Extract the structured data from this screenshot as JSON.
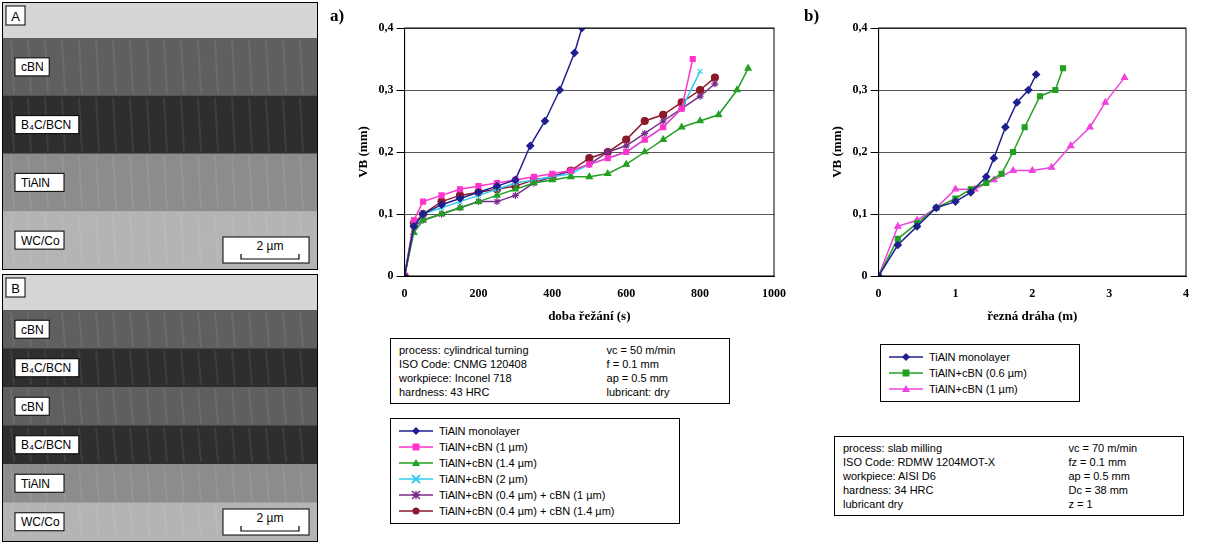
{
  "micrographs": [
    {
      "label": "A",
      "scale_bar": "2 µm",
      "layers": [
        {
          "name": "cBN",
          "color": "#5f5f5f"
        },
        {
          "name": "B₄C/BCN",
          "color": "#2e2e2e"
        },
        {
          "name": "TiAlN",
          "color": "#8c8c8c"
        },
        {
          "name": "WC/Co",
          "color": "#b4b4b4"
        }
      ]
    },
    {
      "label": "B",
      "scale_bar": "2 µm",
      "layers": [
        {
          "name": "cBN",
          "color": "#5f5f5f"
        },
        {
          "name": "B₄C/BCN",
          "color": "#2e2e2e"
        },
        {
          "name": "cBN",
          "color": "#5f5f5f"
        },
        {
          "name": "B₄C/BCN",
          "color": "#2e2e2e"
        },
        {
          "name": "TiAlN",
          "color": "#8c8c8c"
        },
        {
          "name": "WC/Co",
          "color": "#b4b4b4"
        }
      ]
    }
  ],
  "chart_data": [
    {
      "type": "line",
      "panel": "a)",
      "x_label": "doba řežání (s)",
      "y_label": "VB (mm)",
      "xlim": [
        0,
        1000
      ],
      "xticks": [
        0,
        200,
        400,
        600,
        800,
        1000
      ],
      "ylim": [
        0,
        0.4
      ],
      "yticks": [
        0,
        {
          "value": 0.1,
          "label": "0,1"
        },
        {
          "value": 0.2,
          "label": "0,2"
        },
        {
          "value": 0.3,
          "label": "0,3"
        },
        {
          "value": 0.4,
          "label": "0,4"
        }
      ],
      "grid": "y",
      "legend": "bottom",
      "info": [
        [
          "process: cylindrical turning",
          "vc = 50 m/min"
        ],
        [
          "ISO Code: CNMG 120408",
          "f = 0.1 mm"
        ],
        [
          "workpiece:   Inconel 718",
          "ap = 0.5 mm"
        ],
        [
          "hardness: 43 HRC",
          "lubricant: dry"
        ]
      ],
      "series": [
        {
          "name": "TiAlN monolayer",
          "color": "#1f1f8f",
          "marker": "diamond",
          "x": [
            0,
            25,
            50,
            100,
            150,
            200,
            250,
            300,
            340,
            380,
            420,
            460,
            480
          ],
          "values": [
            0,
            0.08,
            0.1,
            0.115,
            0.125,
            0.135,
            0.145,
            0.155,
            0.21,
            0.25,
            0.3,
            0.36,
            0.4
          ]
        },
        {
          "name": "TiAlN+cBN (1 µm)",
          "color": "#ff33cc",
          "marker": "square",
          "x": [
            0,
            25,
            50,
            100,
            150,
            200,
            250,
            300,
            350,
            400,
            450,
            500,
            550,
            600,
            650,
            700,
            750,
            780
          ],
          "values": [
            0,
            0.09,
            0.12,
            0.13,
            0.14,
            0.145,
            0.15,
            0.155,
            0.16,
            0.165,
            0.17,
            0.18,
            0.19,
            0.2,
            0.22,
            0.24,
            0.27,
            0.35
          ]
        },
        {
          "name": "TiAlN+cBN (1.4 µm)",
          "color": "#22a022",
          "marker": "triangle",
          "x": [
            0,
            25,
            50,
            100,
            150,
            200,
            250,
            300,
            350,
            400,
            450,
            500,
            550,
            600,
            650,
            700,
            750,
            800,
            850,
            900,
            930
          ],
          "values": [
            0,
            0.07,
            0.09,
            0.1,
            0.11,
            0.12,
            0.13,
            0.14,
            0.15,
            0.155,
            0.16,
            0.16,
            0.165,
            0.18,
            0.2,
            0.22,
            0.24,
            0.25,
            0.26,
            0.3,
            0.335
          ]
        },
        {
          "name": "TiAlN+cBN (2 µm)",
          "color": "#33ccee",
          "marker": "x",
          "x": [
            0,
            25,
            50,
            100,
            150,
            200,
            250,
            300,
            350,
            400,
            450,
            500,
            550,
            600,
            650,
            700,
            750,
            800
          ],
          "values": [
            0,
            0.08,
            0.1,
            0.11,
            0.12,
            0.13,
            0.14,
            0.15,
            0.155,
            0.16,
            0.165,
            0.18,
            0.19,
            0.2,
            0.22,
            0.24,
            0.27,
            0.33
          ]
        },
        {
          "name": "TiAlN+cBN (0.4 µm) + cBN (1 µm)",
          "color": "#7a2a8a",
          "marker": "star",
          "x": [
            0,
            25,
            50,
            100,
            150,
            200,
            250,
            300,
            350,
            400,
            450,
            500,
            550,
            600,
            650,
            700,
            750,
            800,
            840
          ],
          "values": [
            0,
            0.08,
            0.09,
            0.1,
            0.11,
            0.12,
            0.12,
            0.13,
            0.15,
            0.16,
            0.17,
            0.18,
            0.2,
            0.21,
            0.23,
            0.25,
            0.27,
            0.29,
            0.31
          ]
        },
        {
          "name": "TiAlN+cBN (0.4 µm) + cBN (1.4 µm)",
          "color": "#8b1a2a",
          "marker": "circle",
          "x": [
            0,
            25,
            50,
            100,
            150,
            200,
            250,
            300,
            350,
            400,
            450,
            500,
            550,
            600,
            650,
            700,
            750,
            800,
            840
          ],
          "values": [
            0,
            0.085,
            0.1,
            0.12,
            0.13,
            0.135,
            0.14,
            0.145,
            0.155,
            0.16,
            0.17,
            0.19,
            0.2,
            0.22,
            0.25,
            0.26,
            0.28,
            0.3,
            0.32
          ]
        }
      ]
    },
    {
      "type": "line",
      "panel": "b)",
      "x_label": "řezná dráha (m)",
      "y_label": "VB (mm)",
      "xlim": [
        0,
        4
      ],
      "xticks": [
        0,
        1,
        2,
        3,
        4
      ],
      "ylim": [
        0,
        0.4
      ],
      "yticks": [
        0,
        {
          "value": 0.1,
          "label": "0,1"
        },
        {
          "value": 0.2,
          "label": "0,2"
        },
        {
          "value": 0.3,
          "label": "0,3"
        },
        {
          "value": 0.4,
          "label": "0,4"
        }
      ],
      "grid": "y",
      "legend": "bottom",
      "info": [
        [
          "process: slab milling",
          "vc = 70 m/min"
        ],
        [
          "ISO Code: RDMW 1204MOT-X",
          "fz = 0.1 mm"
        ],
        [
          "workpiece: AISI D6",
          "ap = 0.5 mm"
        ],
        [
          "hardness: 34 HRC",
          "Dc = 38 mm"
        ],
        [
          "lubricant dry",
          "z = 1"
        ]
      ],
      "series": [
        {
          "name": "TiAlN monolayer",
          "color": "#1f1f8f",
          "marker": "diamond",
          "x": [
            0,
            0.25,
            0.5,
            0.75,
            1.0,
            1.2,
            1.4,
            1.5,
            1.65,
            1.8,
            1.95,
            2.05
          ],
          "values": [
            0,
            0.05,
            0.08,
            0.11,
            0.12,
            0.135,
            0.16,
            0.19,
            0.24,
            0.28,
            0.3,
            0.325
          ]
        },
        {
          "name": "TiAlN+cBN (0.6 µm)",
          "color": "#22a022",
          "marker": "square",
          "x": [
            0,
            0.25,
            0.5,
            0.75,
            1.0,
            1.2,
            1.4,
            1.6,
            1.75,
            1.9,
            2.1,
            2.3,
            2.4
          ],
          "values": [
            0,
            0.06,
            0.085,
            0.11,
            0.125,
            0.14,
            0.15,
            0.165,
            0.2,
            0.24,
            0.29,
            0.3,
            0.335
          ]
        },
        {
          "name": "TiAlN+cBN (1 µm)",
          "color": "#ee44dd",
          "marker": "triangle",
          "x": [
            0,
            0.25,
            0.5,
            0.75,
            1.0,
            1.25,
            1.5,
            1.75,
            2.0,
            2.25,
            2.5,
            2.75,
            2.95,
            3.2
          ],
          "values": [
            0,
            0.08,
            0.09,
            0.11,
            0.14,
            0.14,
            0.155,
            0.17,
            0.17,
            0.175,
            0.21,
            0.24,
            0.28,
            0.32
          ]
        }
      ]
    }
  ]
}
